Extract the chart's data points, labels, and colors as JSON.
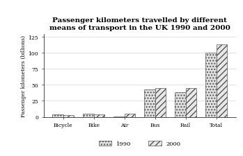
{
  "title": "Passenger kilometers travelled by different\nmeans of transport in the UK 1990 and 2000",
  "categories": [
    "Bicycle",
    "Bike",
    "Air",
    "Bus",
    "Rail",
    "Total"
  ],
  "values_1990": [
    4,
    5,
    1,
    43,
    39,
    100
  ],
  "values_2000": [
    3,
    4,
    5,
    45,
    45,
    113
  ],
  "ylabel": "Passenger kilometers (billions)",
  "ylim": [
    0,
    130
  ],
  "yticks": [
    0,
    25,
    50,
    75,
    100,
    125
  ],
  "legend_labels": [
    "1990",
    "2000"
  ],
  "bar_width": 0.35,
  "color_1990": "#e0e0e0",
  "color_2000": "#e8e8e8",
  "hatch_1990": "....",
  "hatch_2000": "////",
  "title_fontsize": 7.5,
  "axis_fontsize": 5.5,
  "tick_fontsize": 5.5,
  "legend_fontsize": 6,
  "background_color": "#ffffff"
}
